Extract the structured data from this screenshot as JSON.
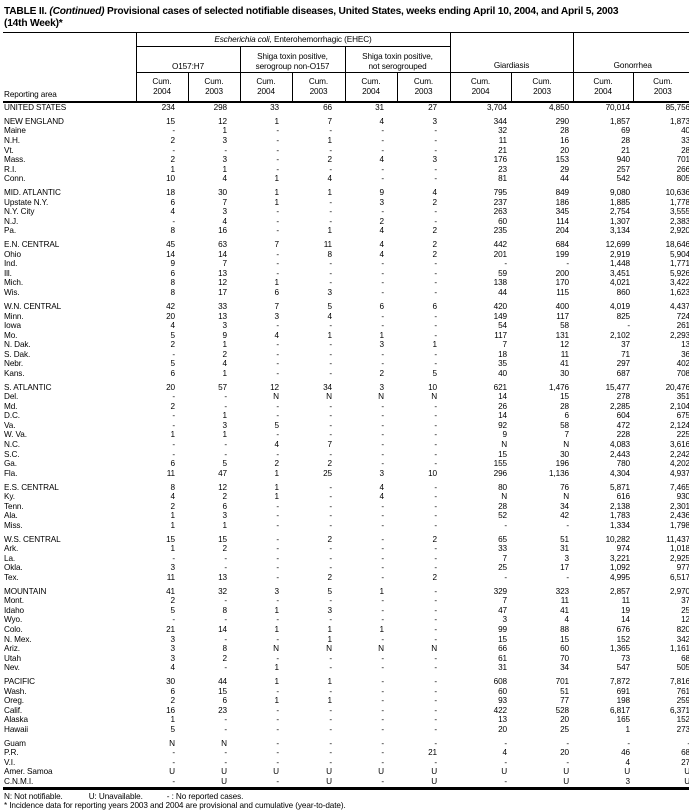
{
  "title": {
    "part1": "TABLE II.",
    "continued": "(Continued)",
    "part2": "Provisional cases of selected notifiable diseases, United States, weeks ending April 10, 2004, and April 5, 2003",
    "line2": "(14th Week)*"
  },
  "header": {
    "reporting_area": "Reporting area",
    "ehec_italic": "Escherichia coli,",
    "ehec_rest": " Enterohemorrhagic (EHEC)",
    "group1_label": "O157:H7",
    "group2_line1": "Shiga toxin positive,",
    "group2_line2": "serogroup non-O157",
    "group3_line1": "Shiga toxin positive,",
    "group3_line2": "not serogrouped",
    "giardiasis": "Giardiasis",
    "gonorrhea": "Gonorrhea",
    "cum_label": "Cum.",
    "year_2004": "2004",
    "year_2003": "2003"
  },
  "sections": [
    {
      "rows": [
        {
          "area": "UNITED STATES",
          "vals": [
            "234",
            "298",
            "33",
            "66",
            "31",
            "27",
            "3,704",
            "4,850",
            "70,014",
            "85,756"
          ]
        }
      ]
    },
    {
      "rows": [
        {
          "area": "NEW ENGLAND",
          "vals": [
            "15",
            "12",
            "1",
            "7",
            "4",
            "3",
            "344",
            "290",
            "1,857",
            "1,873"
          ]
        },
        {
          "area": "Maine",
          "vals": [
            "-",
            "1",
            "-",
            "-",
            "-",
            "-",
            "32",
            "28",
            "69",
            "40"
          ]
        },
        {
          "area": "N.H.",
          "vals": [
            "2",
            "3",
            "-",
            "1",
            "-",
            "-",
            "11",
            "16",
            "28",
            "33"
          ]
        },
        {
          "area": "Vt.",
          "vals": [
            "-",
            "-",
            "-",
            "-",
            "-",
            "-",
            "21",
            "20",
            "21",
            "28"
          ]
        },
        {
          "area": "Mass.",
          "vals": [
            "2",
            "3",
            "-",
            "2",
            "4",
            "3",
            "176",
            "153",
            "940",
            "701"
          ]
        },
        {
          "area": "R.I.",
          "vals": [
            "1",
            "1",
            "-",
            "-",
            "-",
            "-",
            "23",
            "29",
            "257",
            "266"
          ]
        },
        {
          "area": "Conn.",
          "vals": [
            "10",
            "4",
            "1",
            "4",
            "-",
            "-",
            "81",
            "44",
            "542",
            "805"
          ]
        }
      ]
    },
    {
      "rows": [
        {
          "area": "MID. ATLANTIC",
          "vals": [
            "18",
            "30",
            "1",
            "1",
            "9",
            "4",
            "795",
            "849",
            "9,080",
            "10,636"
          ]
        },
        {
          "area": "Upstate N.Y.",
          "vals": [
            "6",
            "7",
            "1",
            "-",
            "3",
            "2",
            "237",
            "186",
            "1,885",
            "1,778"
          ]
        },
        {
          "area": "N.Y. City",
          "vals": [
            "4",
            "3",
            "-",
            "-",
            "-",
            "-",
            "263",
            "345",
            "2,754",
            "3,555"
          ]
        },
        {
          "area": "N.J.",
          "vals": [
            "-",
            "4",
            "-",
            "-",
            "2",
            "-",
            "60",
            "114",
            "1,307",
            "2,383"
          ]
        },
        {
          "area": "Pa.",
          "vals": [
            "8",
            "16",
            "-",
            "1",
            "4",
            "2",
            "235",
            "204",
            "3,134",
            "2,920"
          ]
        }
      ]
    },
    {
      "rows": [
        {
          "area": "E.N. CENTRAL",
          "vals": [
            "45",
            "63",
            "7",
            "11",
            "4",
            "2",
            "442",
            "684",
            "12,699",
            "18,646"
          ]
        },
        {
          "area": "Ohio",
          "vals": [
            "14",
            "14",
            "-",
            "8",
            "4",
            "2",
            "201",
            "199",
            "2,919",
            "5,904"
          ]
        },
        {
          "area": "Ind.",
          "vals": [
            "9",
            "7",
            "-",
            "-",
            "-",
            "-",
            "-",
            "-",
            "1,448",
            "1,771"
          ]
        },
        {
          "area": "Ill.",
          "vals": [
            "6",
            "13",
            "-",
            "-",
            "-",
            "-",
            "59",
            "200",
            "3,451",
            "5,926"
          ]
        },
        {
          "area": "Mich.",
          "vals": [
            "8",
            "12",
            "1",
            "-",
            "-",
            "-",
            "138",
            "170",
            "4,021",
            "3,422"
          ]
        },
        {
          "area": "Wis.",
          "vals": [
            "8",
            "17",
            "6",
            "3",
            "-",
            "-",
            "44",
            "115",
            "860",
            "1,623"
          ]
        }
      ]
    },
    {
      "rows": [
        {
          "area": "W.N. CENTRAL",
          "vals": [
            "42",
            "33",
            "7",
            "5",
            "6",
            "6",
            "420",
            "400",
            "4,019",
            "4,437"
          ]
        },
        {
          "area": "Minn.",
          "vals": [
            "20",
            "13",
            "3",
            "4",
            "-",
            "-",
            "149",
            "117",
            "825",
            "724"
          ]
        },
        {
          "area": "Iowa",
          "vals": [
            "4",
            "3",
            "-",
            "-",
            "-",
            "-",
            "54",
            "58",
            "-",
            "261"
          ]
        },
        {
          "area": "Mo.",
          "vals": [
            "5",
            "9",
            "4",
            "1",
            "1",
            "-",
            "117",
            "131",
            "2,102",
            "2,293"
          ]
        },
        {
          "area": "N. Dak.",
          "vals": [
            "2",
            "1",
            "-",
            "-",
            "3",
            "1",
            "7",
            "12",
            "37",
            "13"
          ]
        },
        {
          "area": "S. Dak.",
          "vals": [
            "-",
            "2",
            "-",
            "-",
            "-",
            "-",
            "18",
            "11",
            "71",
            "36"
          ]
        },
        {
          "area": "Nebr.",
          "vals": [
            "5",
            "4",
            "-",
            "-",
            "-",
            "-",
            "35",
            "41",
            "297",
            "402"
          ]
        },
        {
          "area": "Kans.",
          "vals": [
            "6",
            "1",
            "-",
            "-",
            "2",
            "5",
            "40",
            "30",
            "687",
            "708"
          ]
        }
      ]
    },
    {
      "rows": [
        {
          "area": "S. ATLANTIC",
          "vals": [
            "20",
            "57",
            "12",
            "34",
            "3",
            "10",
            "621",
            "1,476",
            "15,477",
            "20,476"
          ]
        },
        {
          "area": "Del.",
          "vals": [
            "-",
            "-",
            "N",
            "N",
            "N",
            "N",
            "14",
            "15",
            "278",
            "351"
          ]
        },
        {
          "area": "Md.",
          "vals": [
            "2",
            "-",
            "-",
            "-",
            "-",
            "-",
            "26",
            "28",
            "2,285",
            "2,104"
          ]
        },
        {
          "area": "D.C.",
          "vals": [
            "-",
            "1",
            "-",
            "-",
            "-",
            "-",
            "14",
            "6",
            "604",
            "675"
          ]
        },
        {
          "area": "Va.",
          "vals": [
            "-",
            "3",
            "5",
            "-",
            "-",
            "-",
            "92",
            "58",
            "472",
            "2,124"
          ]
        },
        {
          "area": "W. Va.",
          "vals": [
            "1",
            "1",
            "-",
            "-",
            "-",
            "-",
            "9",
            "7",
            "228",
            "225"
          ]
        },
        {
          "area": "N.C.",
          "vals": [
            "-",
            "-",
            "4",
            "7",
            "-",
            "-",
            "N",
            "N",
            "4,083",
            "3,616"
          ]
        },
        {
          "area": "S.C.",
          "vals": [
            "-",
            "-",
            "-",
            "-",
            "-",
            "-",
            "15",
            "30",
            "2,443",
            "2,242"
          ]
        },
        {
          "area": "Ga.",
          "vals": [
            "6",
            "5",
            "2",
            "2",
            "-",
            "-",
            "155",
            "196",
            "780",
            "4,202"
          ]
        },
        {
          "area": "Fla.",
          "vals": [
            "11",
            "47",
            "1",
            "25",
            "3",
            "10",
            "296",
            "1,136",
            "4,304",
            "4,937"
          ]
        }
      ]
    },
    {
      "rows": [
        {
          "area": "E.S. CENTRAL",
          "vals": [
            "8",
            "12",
            "1",
            "-",
            "4",
            "-",
            "80",
            "76",
            "5,871",
            "7,465"
          ]
        },
        {
          "area": "Ky.",
          "vals": [
            "4",
            "2",
            "1",
            "-",
            "4",
            "-",
            "N",
            "N",
            "616",
            "930"
          ]
        },
        {
          "area": "Tenn.",
          "vals": [
            "2",
            "6",
            "-",
            "-",
            "-",
            "-",
            "28",
            "34",
            "2,138",
            "2,301"
          ]
        },
        {
          "area": "Ala.",
          "vals": [
            "1",
            "3",
            "-",
            "-",
            "-",
            "-",
            "52",
            "42",
            "1,783",
            "2,436"
          ]
        },
        {
          "area": "Miss.",
          "vals": [
            "1",
            "1",
            "-",
            "-",
            "-",
            "-",
            "-",
            "-",
            "1,334",
            "1,798"
          ]
        }
      ]
    },
    {
      "rows": [
        {
          "area": "W.S. CENTRAL",
          "vals": [
            "15",
            "15",
            "-",
            "2",
            "-",
            "2",
            "65",
            "51",
            "10,282",
            "11,437"
          ]
        },
        {
          "area": "Ark.",
          "vals": [
            "1",
            "2",
            "-",
            "-",
            "-",
            "-",
            "33",
            "31",
            "974",
            "1,018"
          ]
        },
        {
          "area": "La.",
          "vals": [
            "-",
            "-",
            "-",
            "-",
            "-",
            "-",
            "7",
            "3",
            "3,221",
            "2,925"
          ]
        },
        {
          "area": "Okla.",
          "vals": [
            "3",
            "-",
            "-",
            "-",
            "-",
            "-",
            "25",
            "17",
            "1,092",
            "977"
          ]
        },
        {
          "area": "Tex.",
          "vals": [
            "11",
            "13",
            "-",
            "2",
            "-",
            "2",
            "-",
            "-",
            "4,995",
            "6,517"
          ]
        }
      ]
    },
    {
      "rows": [
        {
          "area": "MOUNTAIN",
          "vals": [
            "41",
            "32",
            "3",
            "5",
            "1",
            "-",
            "329",
            "323",
            "2,857",
            "2,970"
          ]
        },
        {
          "area": "Mont.",
          "vals": [
            "2",
            "-",
            "-",
            "-",
            "-",
            "-",
            "7",
            "11",
            "11",
            "37"
          ]
        },
        {
          "area": "Idaho",
          "vals": [
            "5",
            "8",
            "1",
            "3",
            "-",
            "-",
            "47",
            "41",
            "19",
            "25"
          ]
        },
        {
          "area": "Wyo.",
          "vals": [
            "-",
            "-",
            "-",
            "-",
            "-",
            "-",
            "3",
            "4",
            "14",
            "12"
          ]
        },
        {
          "area": "Colo.",
          "vals": [
            "21",
            "14",
            "1",
            "1",
            "1",
            "-",
            "99",
            "88",
            "676",
            "820"
          ]
        },
        {
          "area": "N. Mex.",
          "vals": [
            "3",
            "-",
            "-",
            "1",
            "-",
            "-",
            "15",
            "15",
            "152",
            "342"
          ]
        },
        {
          "area": "Ariz.",
          "vals": [
            "3",
            "8",
            "N",
            "N",
            "N",
            "N",
            "66",
            "60",
            "1,365",
            "1,161"
          ]
        },
        {
          "area": "Utah",
          "vals": [
            "3",
            "2",
            "-",
            "-",
            "-",
            "-",
            "61",
            "70",
            "73",
            "68"
          ]
        },
        {
          "area": "Nev.",
          "vals": [
            "4",
            "-",
            "1",
            "-",
            "-",
            "-",
            "31",
            "34",
            "547",
            "505"
          ]
        }
      ]
    },
    {
      "rows": [
        {
          "area": "PACIFIC",
          "vals": [
            "30",
            "44",
            "1",
            "1",
            "-",
            "-",
            "608",
            "701",
            "7,872",
            "7,816"
          ]
        },
        {
          "area": "Wash.",
          "vals": [
            "6",
            "15",
            "-",
            "-",
            "-",
            "-",
            "60",
            "51",
            "691",
            "761"
          ]
        },
        {
          "area": "Oreg.",
          "vals": [
            "2",
            "6",
            "1",
            "1",
            "-",
            "-",
            "93",
            "77",
            "198",
            "259"
          ]
        },
        {
          "area": "Calif.",
          "vals": [
            "16",
            "23",
            "-",
            "-",
            "-",
            "-",
            "422",
            "528",
            "6,817",
            "6,371"
          ]
        },
        {
          "area": "Alaska",
          "vals": [
            "1",
            "-",
            "-",
            "-",
            "-",
            "-",
            "13",
            "20",
            "165",
            "152"
          ]
        },
        {
          "area": "Hawaii",
          "vals": [
            "5",
            "-",
            "-",
            "-",
            "-",
            "-",
            "20",
            "25",
            "1",
            "273"
          ]
        }
      ]
    },
    {
      "rows": [
        {
          "area": "Guam",
          "vals": [
            "N",
            "N",
            "-",
            "-",
            "-",
            "-",
            "-",
            "-",
            "-",
            "-"
          ]
        },
        {
          "area": "P.R.",
          "vals": [
            "-",
            "-",
            "-",
            "-",
            "-",
            "21",
            "4",
            "20",
            "46",
            "68"
          ]
        },
        {
          "area": "V.I.",
          "vals": [
            "-",
            "-",
            "-",
            "-",
            "-",
            "-",
            "-",
            "-",
            "4",
            "27"
          ]
        },
        {
          "area": "Amer. Samoa",
          "vals": [
            "U",
            "U",
            "U",
            "U",
            "U",
            "U",
            "U",
            "U",
            "U",
            "U"
          ]
        },
        {
          "area": "C.N.M.I.",
          "vals": [
            "-",
            "U",
            "-",
            "U",
            "-",
            "U",
            "-",
            "U",
            "3",
            "U"
          ]
        }
      ]
    }
  ],
  "footnotes": {
    "n": "N: Not notifiable.",
    "u": "U: Unavailable.",
    "dash": "- : No reported cases.",
    "star": "* Incidence data for reporting years 2003 and 2004 are provisional and cumulative (year-to-date)."
  }
}
